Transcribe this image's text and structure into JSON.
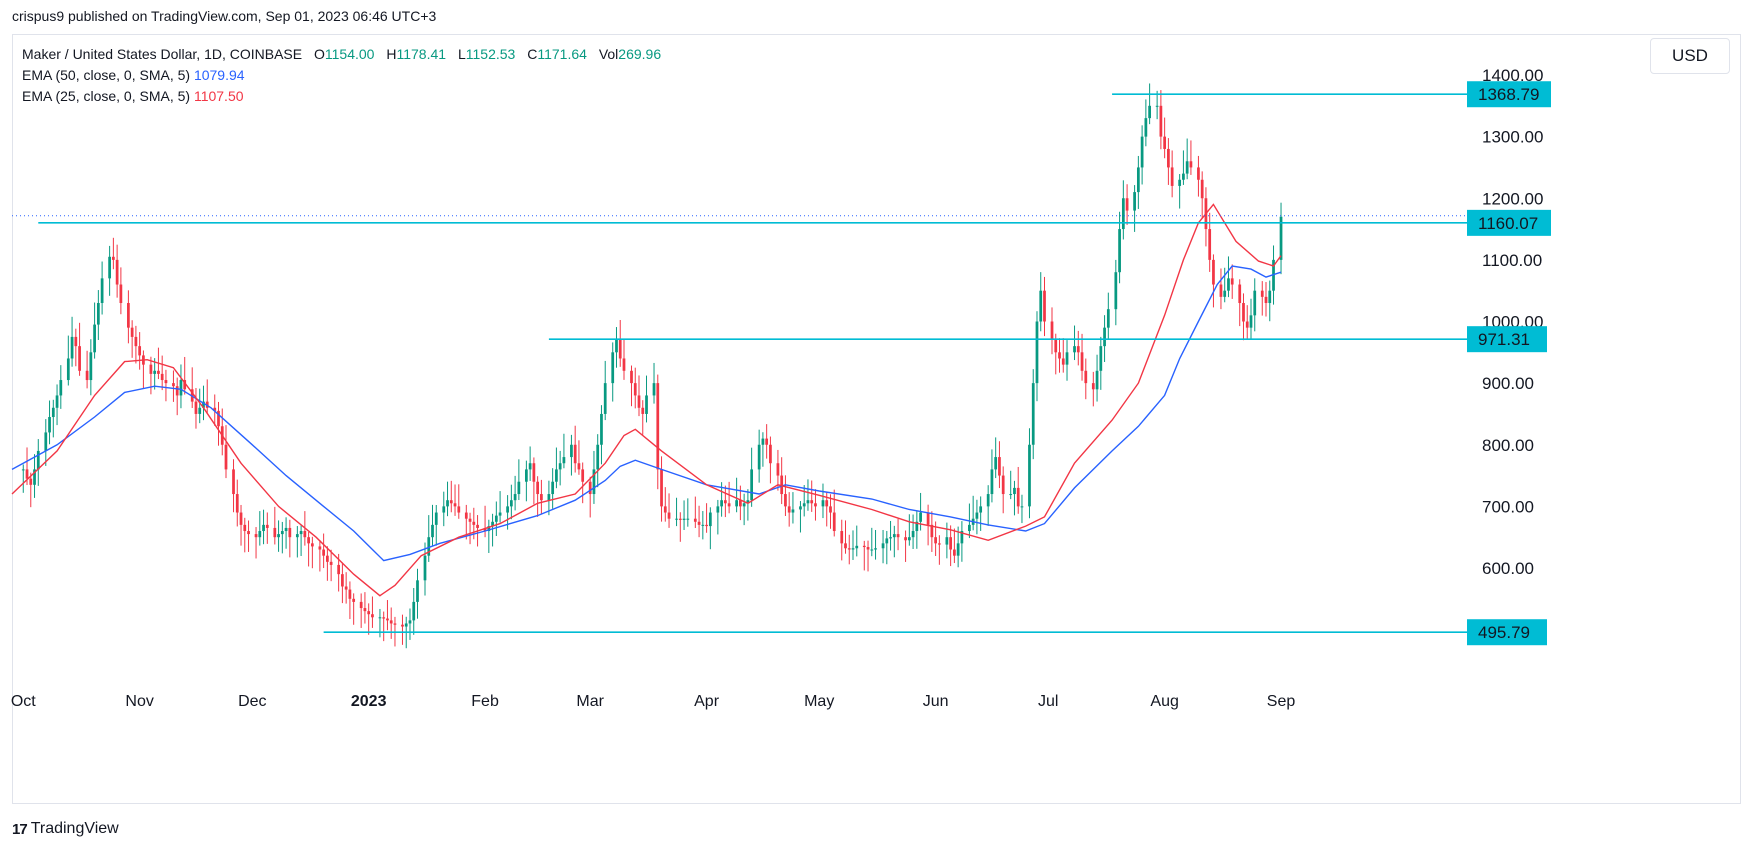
{
  "header": {
    "published": "crispus9 published on TradingView.com, Sep 01, 2023 06:46 UTC+3"
  },
  "legend": {
    "symbol": "Maker / United States Dollar, 1D, COINBASE",
    "o_label": "O",
    "o_value": "1154.00",
    "h_label": "H",
    "h_value": "1178.41",
    "l_label": "L",
    "l_value": "1152.53",
    "c_label": "C",
    "c_value": "1171.64",
    "vol_label": "Vol",
    "vol_value": "269.96",
    "ema50_label": "EMA (50, close, 0, SMA, 5)",
    "ema50_value": "1079.94",
    "ema25_label": "EMA (25, close, 0, SMA, 5)",
    "ema25_value": "1107.50"
  },
  "currency_button": "USD",
  "footer": {
    "brand": "TradingView",
    "logo_text": "17"
  },
  "chart_data": {
    "type": "candlestick",
    "colors": {
      "up": "#089981",
      "down": "#f23645",
      "ema50": "#2962ff",
      "ema25": "#f23645",
      "level": "#00bcd4"
    },
    "ylim": [
      430,
      1420
    ],
    "x_range": [
      "2022-09-28",
      "2023-10-20"
    ],
    "y_ticks": [
      "600.00",
      "700.00",
      "800.00",
      "900.00",
      "1000.00",
      "1100.00",
      "1200.00",
      "1300.00",
      "1400.00"
    ],
    "x_ticks": [
      {
        "label": "Oct",
        "date": "2022-10-01"
      },
      {
        "label": "Nov",
        "date": "2022-11-01"
      },
      {
        "label": "Dec",
        "date": "2022-12-01"
      },
      {
        "label": "2023",
        "date": "2023-01-01",
        "bold": true
      },
      {
        "label": "Feb",
        "date": "2023-02-01"
      },
      {
        "label": "Mar",
        "date": "2023-03-01"
      },
      {
        "label": "Apr",
        "date": "2023-04-01"
      },
      {
        "label": "May",
        "date": "2023-05-01"
      },
      {
        "label": "Jun",
        "date": "2023-06-01"
      },
      {
        "label": "Jul",
        "date": "2023-07-01"
      },
      {
        "label": "Aug",
        "date": "2023-08-01"
      },
      {
        "label": "Sep",
        "date": "2023-09-01"
      }
    ],
    "horizontal_levels": [
      {
        "value": 1368.79,
        "label": "1368.79",
        "from": "2023-07-18"
      },
      {
        "value": 1160.07,
        "label": "1160.07",
        "from": "2022-10-05"
      },
      {
        "value": 971.31,
        "label": "971.31",
        "from": "2023-02-18"
      },
      {
        "value": 495.79,
        "label": "495.79",
        "from": "2022-12-20"
      }
    ],
    "current_price": 1171.64,
    "close_series": {
      "start": "2022-10-01",
      "values": [
        760,
        745,
        735,
        760,
        790,
        820,
        845,
        860,
        880,
        905,
        940,
        975,
        960,
        920,
        905,
        950,
        995,
        1030,
        1070,
        1105,
        1100,
        1060,
        1030,
        990,
        975,
        960,
        945,
        930,
        915,
        920,
        915,
        905,
        900,
        895,
        880,
        905,
        890,
        870,
        850,
        860,
        870,
        860,
        855,
        830,
        800,
        760,
        720,
        690,
        670,
        660,
        655,
        650,
        660,
        670,
        665,
        650,
        655,
        660,
        665,
        650,
        655,
        660,
        650,
        640,
        635,
        630,
        620,
        610,
        605,
        590,
        570,
        565,
        550,
        545,
        535,
        530,
        525,
        520,
        520,
        518,
        515,
        510,
        508,
        505,
        510,
        515,
        545,
        580,
        620,
        650,
        670,
        690,
        700,
        710,
        705,
        700,
        690,
        680,
        675,
        670,
        665,
        660,
        668,
        675,
        685,
        690,
        700,
        710,
        720,
        740,
        760,
        770,
        740,
        720,
        710,
        720,
        740,
        760,
        770,
        780,
        800,
        770,
        760,
        740,
        720,
        760,
        800,
        850,
        900,
        950,
        970,
        940,
        920,
        900,
        880,
        860,
        850,
        880,
        900,
        760,
        700,
        690,
        680,
        680,
        678,
        680,
        680,
        675,
        670,
        670,
        668,
        690,
        700,
        710,
        705,
        700,
        710,
        700,
        705,
        710,
        760,
        800,
        810,
        800,
        770,
        750,
        720,
        700,
        690,
        695,
        700,
        705,
        710,
        705,
        700,
        710,
        700,
        690,
        660,
        640,
        632,
        630,
        632,
        636,
        634,
        630,
        630,
        632,
        640,
        648,
        650,
        655,
        650,
        645,
        650,
        660,
        675,
        690,
        670,
        650,
        640,
        638,
        650,
        630,
        620,
        640,
        660,
        670,
        680,
        690,
        700,
        720,
        760,
        780,
        750,
        720,
        720,
        730,
        700,
        700,
        800,
        900,
        1000,
        1050,
        1000,
        970,
        950,
        940,
        930,
        950,
        960,
        950,
        920,
        900,
        890,
        920,
        960,
        990,
        1020,
        1080,
        1150,
        1200,
        1180,
        1210,
        1250,
        1300,
        1330,
        1350,
        1350,
        1300,
        1280,
        1250,
        1220,
        1230,
        1240,
        1260,
        1250,
        1230,
        1200,
        1150,
        1100,
        1060,
        1040,
        1050,
        1070,
        1060,
        1030,
        1000,
        990,
        1010,
        1050,
        1040,
        1030,
        1050,
        1100,
        1170
      ]
    },
    "ema50": [
      [
        "2022-09-28",
        760
      ],
      [
        "2022-10-10",
        800
      ],
      [
        "2022-10-20",
        845
      ],
      [
        "2022-10-28",
        885
      ],
      [
        "2022-11-05",
        895
      ],
      [
        "2022-11-12",
        890
      ],
      [
        "2022-11-20",
        860
      ],
      [
        "2022-12-01",
        800
      ],
      [
        "2022-12-10",
        750
      ],
      [
        "2022-12-20",
        700
      ],
      [
        "2022-12-28",
        660
      ],
      [
        "2023-01-02",
        630
      ],
      [
        "2023-01-05",
        612
      ],
      [
        "2023-01-12",
        622
      ],
      [
        "2023-01-20",
        640
      ],
      [
        "2023-02-01",
        660
      ],
      [
        "2023-02-15",
        685
      ],
      [
        "2023-02-25",
        710
      ],
      [
        "2023-03-05",
        742
      ],
      [
        "2023-03-09",
        765
      ],
      [
        "2023-03-13",
        775
      ],
      [
        "2023-03-20",
        760
      ],
      [
        "2023-04-01",
        735
      ],
      [
        "2023-04-15",
        720
      ],
      [
        "2023-04-22",
        735
      ],
      [
        "2023-05-01",
        725
      ],
      [
        "2023-05-15",
        712
      ],
      [
        "2023-05-25",
        695
      ],
      [
        "2023-06-05",
        683
      ],
      [
        "2023-06-15",
        670
      ],
      [
        "2023-06-25",
        660
      ],
      [
        "2023-06-30",
        672
      ],
      [
        "2023-07-08",
        730
      ],
      [
        "2023-07-18",
        790
      ],
      [
        "2023-07-25",
        830
      ],
      [
        "2023-08-01",
        880
      ],
      [
        "2023-08-05",
        940
      ],
      [
        "2023-08-10",
        1000
      ],
      [
        "2023-08-15",
        1060
      ],
      [
        "2023-08-19",
        1090
      ],
      [
        "2023-08-24",
        1085
      ],
      [
        "2023-08-28",
        1072
      ],
      [
        "2023-09-01",
        1080
      ]
    ],
    "ema25": [
      [
        "2022-09-28",
        720
      ],
      [
        "2022-10-10",
        790
      ],
      [
        "2022-10-20",
        880
      ],
      [
        "2022-10-28",
        935
      ],
      [
        "2022-11-03",
        938
      ],
      [
        "2022-11-10",
        925
      ],
      [
        "2022-11-18",
        860
      ],
      [
        "2022-11-28",
        770
      ],
      [
        "2022-12-08",
        700
      ],
      [
        "2022-12-18",
        650
      ],
      [
        "2022-12-28",
        590
      ],
      [
        "2023-01-04",
        555
      ],
      [
        "2023-01-08",
        572
      ],
      [
        "2023-01-15",
        620
      ],
      [
        "2023-01-25",
        650
      ],
      [
        "2023-02-05",
        672
      ],
      [
        "2023-02-15",
        705
      ],
      [
        "2023-02-25",
        720
      ],
      [
        "2023-03-05",
        770
      ],
      [
        "2023-03-10",
        815
      ],
      [
        "2023-03-13",
        825
      ],
      [
        "2023-03-20",
        790
      ],
      [
        "2023-04-01",
        735
      ],
      [
        "2023-04-12",
        705
      ],
      [
        "2023-04-20",
        735
      ],
      [
        "2023-05-01",
        718
      ],
      [
        "2023-05-15",
        695
      ],
      [
        "2023-05-25",
        675
      ],
      [
        "2023-06-05",
        662
      ],
      [
        "2023-06-15",
        645
      ],
      [
        "2023-06-25",
        668
      ],
      [
        "2023-06-30",
        683
      ],
      [
        "2023-07-08",
        770
      ],
      [
        "2023-07-18",
        840
      ],
      [
        "2023-07-25",
        900
      ],
      [
        "2023-08-01",
        1010
      ],
      [
        "2023-08-06",
        1100
      ],
      [
        "2023-08-10",
        1160
      ],
      [
        "2023-08-14",
        1190
      ],
      [
        "2023-08-20",
        1130
      ],
      [
        "2023-08-26",
        1098
      ],
      [
        "2023-08-30",
        1090
      ],
      [
        "2023-09-01",
        1107
      ]
    ]
  }
}
